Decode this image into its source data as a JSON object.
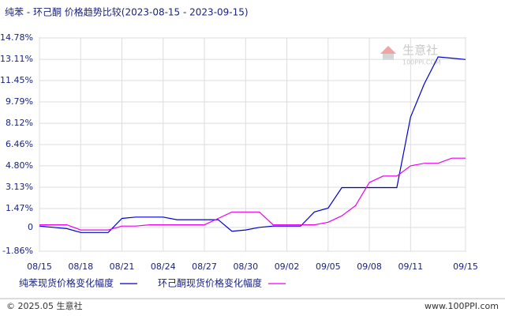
{
  "chart_data": {
    "type": "line",
    "title": "纯苯 - 环己酮 价格趋势比较(2023-08-15 - 2023-09-15)",
    "watermark": "生意社",
    "watermark_sub": "100PPI.COM",
    "footer_left": "© 2025.05 生意社",
    "footer_right": "www.100PPI.com",
    "grid": true,
    "x": [
      "08/15",
      "08/16",
      "08/17",
      "08/18",
      "08/19",
      "08/20",
      "08/21",
      "08/22",
      "08/23",
      "08/24",
      "08/25",
      "08/26",
      "08/27",
      "08/28",
      "08/29",
      "08/30",
      "08/31",
      "09/01",
      "09/02",
      "09/03",
      "09/04",
      "09/05",
      "09/06",
      "09/07",
      "09/08",
      "09/09",
      "09/10",
      "09/11",
      "09/12",
      "09/13",
      "09/14",
      "09/15"
    ],
    "xticks": [
      "08/15",
      "08/18",
      "08/21",
      "08/24",
      "08/27",
      "08/30",
      "09/02",
      "09/05",
      "09/08",
      "09/11",
      "09/15"
    ],
    "ylim": [
      -1.86,
      14.78
    ],
    "yticks": [
      {
        "value": 14.78,
        "label": "14.78%"
      },
      {
        "value": 13.11,
        "label": "13.11%"
      },
      {
        "value": 11.45,
        "label": "11.45%"
      },
      {
        "value": 9.79,
        "label": "9.79%"
      },
      {
        "value": 8.12,
        "label": "8.12%"
      },
      {
        "value": 6.46,
        "label": "6.46%"
      },
      {
        "value": 4.8,
        "label": "4.80%"
      },
      {
        "value": 3.13,
        "label": "3.13%"
      },
      {
        "value": 1.47,
        "label": "1.47%"
      },
      0,
      {
        "value": -1.86,
        "label": "-1.86%"
      }
    ],
    "series": [
      {
        "name": "纯苯现货价格变化幅度",
        "color": "#0000cc",
        "values": [
          0.1,
          0.0,
          -0.1,
          -0.4,
          -0.4,
          -0.4,
          0.7,
          0.8,
          0.8,
          0.8,
          0.6,
          0.6,
          0.6,
          0.6,
          -0.3,
          -0.2,
          0.0,
          0.1,
          0.1,
          0.1,
          1.2,
          1.5,
          3.1,
          3.1,
          3.1,
          3.1,
          3.1,
          8.6,
          11.2,
          13.3,
          13.2,
          13.1
        ]
      },
      {
        "name": "环己酮现货价格变化幅度",
        "color": "#ee00ee",
        "values": [
          0.2,
          0.2,
          0.2,
          -0.2,
          -0.2,
          -0.2,
          0.1,
          0.1,
          0.2,
          0.2,
          0.2,
          0.2,
          0.2,
          0.7,
          1.2,
          1.2,
          1.2,
          0.2,
          0.2,
          0.2,
          0.2,
          0.4,
          0.9,
          1.7,
          3.5,
          4.0,
          4.0,
          4.8,
          5.0,
          5.0,
          5.4,
          5.4
        ]
      }
    ]
  }
}
